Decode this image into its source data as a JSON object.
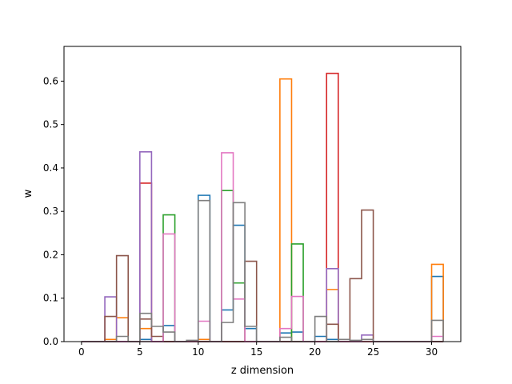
{
  "chart_data": {
    "type": "histogram-step",
    "xlabel": "z dimension",
    "ylabel": "w",
    "xlim": [
      -1.5,
      32.5
    ],
    "ylim": [
      0,
      0.68
    ],
    "xticks": [
      0,
      5,
      10,
      15,
      20,
      25,
      30
    ],
    "yticks": [
      0.0,
      0.1,
      0.2,
      0.3,
      0.4,
      0.5,
      0.6
    ],
    "bin_edges": [
      0,
      1,
      2,
      3,
      4,
      5,
      6,
      7,
      8,
      9,
      10,
      11,
      12,
      13,
      14,
      15,
      16,
      17,
      18,
      19,
      20,
      21,
      22,
      23,
      24,
      25,
      26,
      27,
      28,
      29,
      30,
      31
    ],
    "grid": false,
    "legend": "none",
    "series": [
      {
        "color": "#1f77b4",
        "values": [
          0,
          0,
          0,
          0,
          0,
          0.005,
          0,
          0.037,
          0,
          0,
          0.337,
          0,
          0.073,
          0.268,
          0.03,
          0,
          0,
          0.02,
          0.022,
          0,
          0.012,
          0.005,
          0,
          0,
          0,
          0,
          0,
          0,
          0,
          0,
          0.15
        ]
      },
      {
        "color": "#ff7f0e",
        "values": [
          0,
          0,
          0.005,
          0.055,
          0,
          0.03,
          0,
          0,
          0,
          0,
          0.005,
          0,
          0,
          0,
          0,
          0,
          0,
          0.605,
          0,
          0,
          0,
          0.12,
          0,
          0,
          0,
          0,
          0,
          0,
          0,
          0,
          0.178
        ]
      },
      {
        "color": "#2ca02c",
        "values": [
          0,
          0,
          0,
          0,
          0,
          0,
          0,
          0.292,
          0,
          0,
          0,
          0,
          0.348,
          0.135,
          0,
          0,
          0,
          0,
          0.225,
          0,
          0,
          0,
          0,
          0,
          0,
          0,
          0,
          0,
          0,
          0,
          0
        ]
      },
      {
        "color": "#d62728",
        "values": [
          0,
          0,
          0,
          0,
          0,
          0.365,
          0,
          0,
          0,
          0,
          0,
          0,
          0,
          0,
          0,
          0,
          0,
          0,
          0,
          0,
          0,
          0.618,
          0,
          0,
          0,
          0,
          0,
          0,
          0,
          0,
          0
        ]
      },
      {
        "color": "#9467bd",
        "values": [
          0,
          0,
          0.103,
          0,
          0,
          0.437,
          0,
          0,
          0,
          0,
          0,
          0,
          0,
          0,
          0,
          0,
          0,
          0,
          0,
          0,
          0,
          0.168,
          0,
          0,
          0.015,
          0,
          0,
          0,
          0,
          0,
          0
        ]
      },
      {
        "color": "#8c564b",
        "values": [
          0,
          0,
          0.058,
          0.198,
          0,
          0.052,
          0.012,
          0,
          0,
          0,
          0,
          0,
          0,
          0,
          0.185,
          0,
          0,
          0,
          0,
          0,
          0,
          0.04,
          0,
          0.145,
          0.303,
          0,
          0,
          0,
          0,
          0,
          0
        ]
      },
      {
        "color": "#e377c2",
        "values": [
          0,
          0,
          0,
          0,
          0,
          0,
          0,
          0.248,
          0,
          0,
          0.047,
          0,
          0.435,
          0.098,
          0,
          0,
          0,
          0.03,
          0.104,
          0,
          0,
          0,
          0,
          0,
          0,
          0,
          0,
          0,
          0,
          0,
          0.012
        ]
      },
      {
        "color": "#7f7f7f",
        "values": [
          0,
          0,
          0,
          0.012,
          0,
          0.065,
          0.035,
          0.022,
          0,
          0.003,
          0.325,
          0,
          0.044,
          0.32,
          0.035,
          0,
          0,
          0.01,
          0,
          0,
          0.058,
          0,
          0.005,
          0.003,
          0.005,
          0,
          0,
          0,
          0,
          0,
          0.049
        ]
      }
    ]
  }
}
